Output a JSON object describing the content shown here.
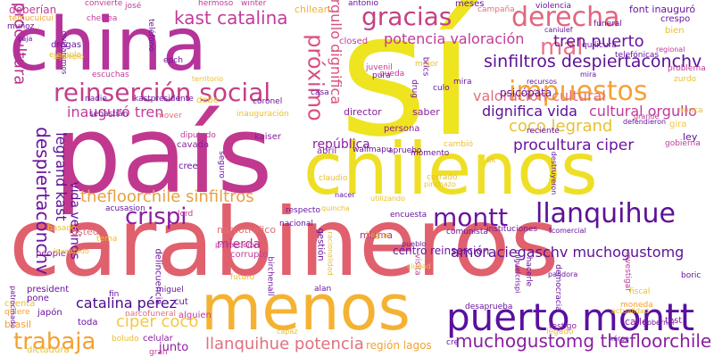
{
  "palette": {
    "magenta": "#c13b9a",
    "purple": "#6a1a9e",
    "deep_purple": "#4a0a8a",
    "pink": "#e0607a",
    "coral": "#e05a6a",
    "orange": "#f49b3a",
    "amber": "#f5b030",
    "yellow": "#eee020",
    "background": "#ffffff"
  },
  "words": [
    {
      "text": "sí",
      "color": "#eee420"
    },
    {
      "text": "país",
      "color": "#c1388f"
    },
    {
      "text": "carabineros",
      "color": "#e0606e"
    },
    {
      "text": "china",
      "color": "#b5339a"
    },
    {
      "text": "chilenos",
      "color": "#eedf26"
    },
    {
      "text": "menos",
      "color": "#f5b232"
    },
    {
      "text": "puerto montt",
      "color": "#5a0f9e"
    },
    {
      "text": "llanquihue",
      "color": "#5c1197"
    },
    {
      "text": "montt",
      "color": "#6a14a0"
    },
    {
      "text": "reinserción social",
      "color": "#c43f88"
    },
    {
      "text": "impuestos",
      "color": "#f4a236"
    },
    {
      "text": "derecha",
      "color": "#e0667e"
    },
    {
      "text": "gracias",
      "color": "#c54182"
    },
    {
      "text": "trabaja",
      "color": "#f5a030"
    },
    {
      "text": "crispi",
      "color": "#8a1fa0"
    },
    {
      "text": "mal",
      "color": "#e8748a"
    },
    {
      "text": "próximo",
      "color": "#d9507e"
    },
    {
      "text": "procultura",
      "color": "#b53190"
    },
    {
      "text": "kast catalina",
      "color": "#c13b9a"
    },
    {
      "text": "despiertaconchv",
      "color": "#6a14a0"
    },
    {
      "text": "sinfiltros despiertaconchv",
      "color": "#5c1197"
    },
    {
      "text": "amoraciegaschv muchogustomg",
      "color": "#5c1197"
    },
    {
      "text": "muchogustomg thefloorchile",
      "color": "#8a1fa0"
    },
    {
      "text": "thefloorchile sinfiltros",
      "color": "#e8a040"
    },
    {
      "text": "procultura ciper",
      "color": "#6a14a0"
    },
    {
      "text": "catalina pérez",
      "color": "#4a0a8a"
    },
    {
      "text": "llanquihue potencia",
      "color": "#e0707e"
    },
    {
      "text": "ciper coco",
      "color": "#f4c840"
    },
    {
      "text": "coco legrand",
      "color": "#e8c030"
    },
    {
      "text": "potencia valoración",
      "color": "#c13b9a"
    },
    {
      "text": "tren puerto",
      "color": "#6a14a0"
    },
    {
      "text": "valoración cultural",
      "color": "#e0707e"
    },
    {
      "text": "inauguró tren",
      "color": "#c13b9a"
    },
    {
      "text": "dignifica vida",
      "color": "#5c1197"
    },
    {
      "text": "cultural orgullo",
      "color": "#c13b9a"
    },
    {
      "text": "orgullo dignifica",
      "color": "#d9507e"
    },
    {
      "text": "legrand kast",
      "color": "#5c1197"
    },
    {
      "text": "vida vecinos",
      "color": "#5c1197"
    },
    {
      "text": "república",
      "color": "#8a1fa0"
    },
    {
      "text": "mierda",
      "color": "#b53190"
    },
    {
      "text": "psicópata",
      "color": "#6a14a0"
    },
    {
      "text": "director",
      "color": "#8a1fa0"
    },
    {
      "text": "saber",
      "color": "#8a1fa0"
    },
    {
      "text": "persona",
      "color": "#8a1fa0"
    },
    {
      "text": "región lagos",
      "color": "#f5a030"
    },
    {
      "text": "junto",
      "color": "#8a1fa0"
    },
    {
      "text": "abril",
      "color": "#8a1fa0"
    },
    {
      "text": "kaiser",
      "color": "#8a1fa0"
    },
    {
      "text": "usted",
      "color": "#e0707e"
    },
    {
      "text": "centro reinserción",
      "color": "#6a14a0"
    },
    {
      "text": "misma",
      "color": "#b53190"
    },
    {
      "text": "narcotráfico",
      "color": "#e07070"
    },
    {
      "text": "deberían",
      "color": "#c13b9a"
    },
    {
      "text": "chilean",
      "color": "#f5b030"
    },
    {
      "text": "font inauguró",
      "color": "#6a14a0"
    },
    {
      "text": "crespo",
      "color": "#6a14a0"
    },
    {
      "text": "meses",
      "color": "#6a14a0"
    },
    {
      "text": "bien",
      "color": "#e8c030"
    },
    {
      "text": "ley",
      "color": "#5c1197"
    },
    {
      "text": "gira",
      "color": "#f4c840"
    },
    {
      "text": "cuenta",
      "color": "#e8c030"
    },
    {
      "text": "celular",
      "color": "#8a1fa0"
    },
    {
      "text": "calle",
      "color": "#8a1fa0"
    },
    {
      "text": "test",
      "color": "#8a1fa0"
    },
    {
      "text": "people",
      "color": "#8a1fa0"
    },
    {
      "text": "president",
      "color": "#6a14a0"
    },
    {
      "text": "pone",
      "color": "#6a14a0"
    },
    {
      "text": "toda",
      "color": "#6a14a0"
    },
    {
      "text": "cut",
      "color": "#6a14a0"
    },
    {
      "text": "alguien",
      "color": "#c13b9a"
    },
    {
      "text": "narcofuneral",
      "color": "#e0707e"
    },
    {
      "text": "cavada",
      "color": "#8a1fa0"
    },
    {
      "text": "cree",
      "color": "#6a14a0"
    },
    {
      "text": "diputado",
      "color": "#c13b9a"
    },
    {
      "text": "lord",
      "color": "#c13b9a"
    },
    {
      "text": "corrupto",
      "color": "#c13b9a"
    },
    {
      "text": "futuro",
      "color": "#e8c030"
    },
    {
      "text": "gestión",
      "color": "#6a14a0"
    },
    {
      "text": "visita",
      "color": "#c13b9a"
    },
    {
      "text": "delincuencia",
      "color": "#6a14a0"
    },
    {
      "text": "fiscal",
      "color": "#e8c030"
    },
    {
      "text": "testigo",
      "color": "#8a1fa0"
    },
    {
      "text": "moneda",
      "color": "#f5a030"
    },
    {
      "text": "legado",
      "color": "#e8c030"
    },
    {
      "text": "pandora",
      "color": "#6a14a0"
    },
    {
      "text": "capaz",
      "color": "#e8c030"
    },
    {
      "text": "brasil",
      "color": "#f5a030"
    },
    {
      "text": "dictadura",
      "color": "#e8c030"
    },
    {
      "text": "japón",
      "color": "#6a14a0"
    },
    {
      "text": "quiere",
      "color": "#f5a030"
    },
    {
      "text": "gran",
      "color": "#c13b9a"
    },
    {
      "text": "temucuicui",
      "color": "#f5a030"
    },
    {
      "text": "muñoz",
      "color": "#6a14a0"
    },
    {
      "text": "drogas",
      "color": "#6a14a0"
    },
    {
      "text": "ejemplo",
      "color": "#e8c030"
    },
    {
      "text": "escuchas",
      "color": "#c13b9a"
    },
    {
      "text": "nadie",
      "color": "#6a14a0"
    },
    {
      "text": "kastpresidente",
      "color": "#6a14a0"
    },
    {
      "text": "debe",
      "color": "#e8c030"
    },
    {
      "text": "inauguración",
      "color": "#e8c030"
    },
    {
      "text": "casa",
      "color": "#6a14a0"
    },
    {
      "text": "closed",
      "color": "#c13b9a"
    },
    {
      "text": "queda",
      "color": "#c13b9a"
    },
    {
      "text": "juvenil",
      "color": "#c13b9a"
    },
    {
      "text": "pura",
      "color": "#6a14a0"
    },
    {
      "text": "mejor",
      "color": "#e8c030"
    },
    {
      "text": "funeral",
      "color": "#6a14a0"
    },
    {
      "text": "campaña",
      "color": "#e0707e"
    },
    {
      "text": "violencia",
      "color": "#6a14a0"
    },
    {
      "text": "antonio",
      "color": "#6a14a0"
    },
    {
      "text": "convierte",
      "color": "#c13b9a"
    },
    {
      "text": "josé",
      "color": "#c13b9a"
    },
    {
      "text": "hermoso",
      "color": "#c13b9a"
    },
    {
      "text": "chelsea",
      "color": "#c13b9a"
    },
    {
      "text": "winter",
      "color": "#c13b9a"
    },
    {
      "text": "teléfono",
      "color": "#6a14a0"
    },
    {
      "text": "epch",
      "color": "#6a14a0"
    },
    {
      "text": "mover",
      "color": "#e0707e"
    },
    {
      "text": "coronel",
      "color": "#6a14a0"
    },
    {
      "text": "sebastián",
      "color": "#6a14a0"
    },
    {
      "text": "acusasion",
      "color": "#6a14a0"
    },
    {
      "text": "seguro",
      "color": "#6a14a0"
    },
    {
      "text": "respecto",
      "color": "#6a14a0"
    },
    {
      "text": "nacional",
      "color": "#6a14a0"
    },
    {
      "text": "encuesta",
      "color": "#6a14a0"
    },
    {
      "text": "comunista",
      "color": "#6a14a0"
    },
    {
      "text": "instituciones",
      "color": "#6a14a0"
    },
    {
      "text": "apruebo",
      "color": "#6a14a0"
    },
    {
      "text": "desaprueba",
      "color": "#6a14a0"
    },
    {
      "text": "momento",
      "color": "#6a14a0"
    },
    {
      "text": "wallmapu",
      "color": "#6a14a0"
    },
    {
      "text": "claudio",
      "color": "#e8c030"
    },
    {
      "text": "cambió",
      "color": "#e8c030"
    },
    {
      "text": "cerrado",
      "color": "#e8c030"
    },
    {
      "text": "reciente",
      "color": "#6a14a0"
    },
    {
      "text": "investigar",
      "color": "#c13b9a"
    },
    {
      "text": "hacerle",
      "color": "#6a14a0"
    },
    {
      "text": "democracia",
      "color": "#6a14a0"
    },
    {
      "text": "boric",
      "color": "#6a14a0"
    },
    {
      "text": "gobierna",
      "color": "#c13b9a"
    },
    {
      "text": "nunca",
      "color": "#e8c030"
    },
    {
      "text": "zurdo",
      "color": "#e8c030"
    },
    {
      "text": "problema",
      "color": "#c13b9a"
    },
    {
      "text": "regional",
      "color": "#c13b9a"
    },
    {
      "text": "grande",
      "color": "#c13b9a"
    },
    {
      "text": "defendieron",
      "color": "#6a14a0"
    },
    {
      "text": "mira",
      "color": "#6a14a0"
    },
    {
      "text": "recursos",
      "color": "#6a14a0"
    },
    {
      "text": "quilicura",
      "color": "#6a14a0"
    },
    {
      "text": "telefónicas",
      "color": "#6a14a0"
    },
    {
      "text": "culo",
      "color": "#6a14a0"
    },
    {
      "text": "brics",
      "color": "#6a14a0"
    },
    {
      "text": "drug",
      "color": "#6a14a0"
    },
    {
      "text": "ak",
      "color": "#e8c030"
    },
    {
      "text": "miguel",
      "color": "#6a14a0"
    },
    {
      "text": "fin",
      "color": "#6a14a0"
    },
    {
      "text": "boludo",
      "color": "#e8c030"
    },
    {
      "text": "tema",
      "color": "#e8c030"
    },
    {
      "text": "basado",
      "color": "#e8c030"
    },
    {
      "text": "patrocinado",
      "color": "#6a14a0"
    },
    {
      "text": "actualidad",
      "color": "#e8c030"
    },
    {
      "text": "héroe",
      "color": "#6a14a0"
    },
    {
      "text": "gobernar",
      "color": "#6a14a0"
    },
    {
      "text": "caja",
      "color": "#6a14a0"
    },
    {
      "text": "olvidaremos",
      "color": "#6a14a0"
    },
    {
      "text": "prometieron",
      "color": "#c13b9a"
    },
    {
      "text": "llegue",
      "color": "#e8c030"
    },
    {
      "text": "alan",
      "color": "#6a14a0"
    },
    {
      "text": "birchenall",
      "color": "#6a14a0"
    },
    {
      "text": "ciudad",
      "color": "#e8c030"
    },
    {
      "text": "cre",
      "color": "#6a14a0"
    },
    {
      "text": "nacer",
      "color": "#6a14a0"
    },
    {
      "text": "pueblo",
      "color": "#6a14a0"
    },
    {
      "text": "ejemplo",
      "color": "#e8c030"
    },
    {
      "text": "caniulef",
      "color": "#6a14a0"
    },
    {
      "text": "territorio",
      "color": "#e8c030"
    },
    {
      "text": "levantado",
      "color": "#e8c030"
    },
    {
      "text": "utilizando",
      "color": "#e8c030"
    },
    {
      "text": "pinchazo",
      "color": "#e8c030"
    },
    {
      "text": "quincha",
      "color": "#e8c030"
    },
    {
      "text": "miguelcrispi",
      "color": "#6a14a0"
    },
    {
      "text": "racionalidad",
      "color": "#e8c030"
    },
    {
      "text": "fcomercial",
      "color": "#6a14a0"
    },
    {
      "text": "constitucional",
      "color": "#6a14a0"
    },
    {
      "text": "destruyeron",
      "color": "#6a14a0"
    },
    {
      "text": "mira",
      "color": "#6a14a0"
    }
  ]
}
